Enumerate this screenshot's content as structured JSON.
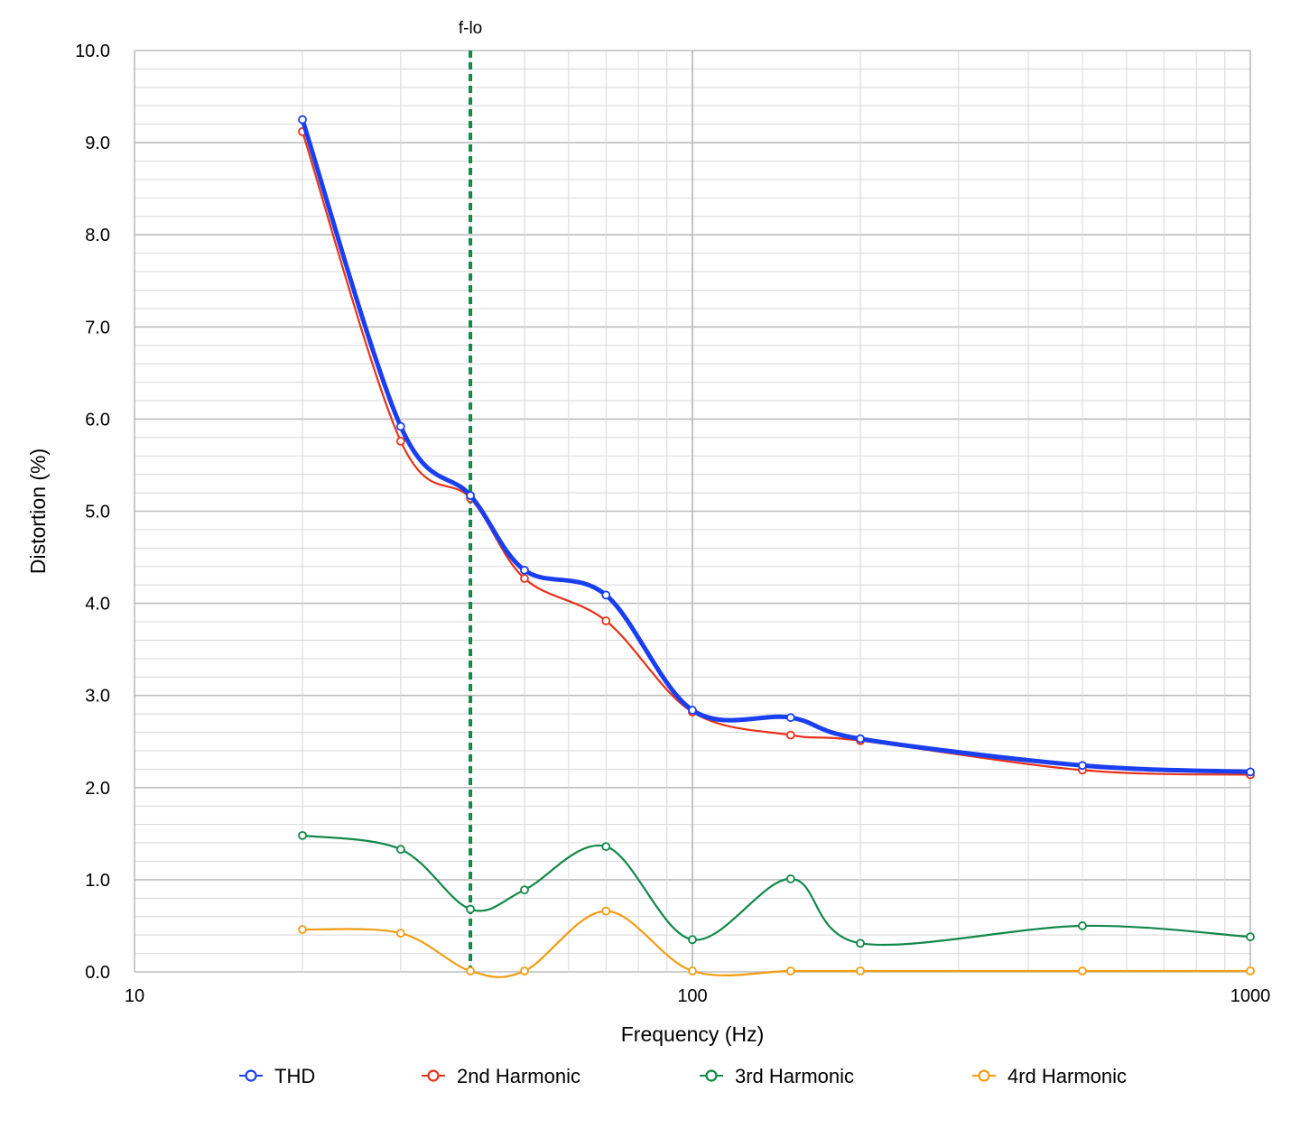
{
  "chart_data": {
    "type": "line",
    "xlabel": "Frequency (Hz)",
    "ylabel": "Distortion (%)",
    "xscale": "log",
    "xlim": [
      10,
      1000
    ],
    "ylim": [
      0,
      10
    ],
    "x_tick_labels": [
      "10",
      "100",
      "1000"
    ],
    "y_tick_labels": [
      "0.0",
      "1.0",
      "2.0",
      "3.0",
      "4.0",
      "5.0",
      "6.0",
      "7.0",
      "8.0",
      "9.0",
      "10.0"
    ],
    "grid": true,
    "legend_position": "bottom",
    "x": [
      20,
      30,
      40,
      50,
      70,
      100,
      150,
      200,
      500,
      1000
    ],
    "series": [
      {
        "name": "THD",
        "color": "#1a3ff0",
        "values": [
          9.25,
          5.92,
          5.17,
          4.36,
          4.09,
          2.84,
          2.76,
          2.53,
          2.24,
          2.17
        ]
      },
      {
        "name": "2nd Harmonic",
        "color": "#e8321a",
        "values": [
          9.12,
          5.76,
          5.14,
          4.27,
          3.81,
          2.82,
          2.57,
          2.51,
          2.19,
          2.14
        ]
      },
      {
        "name": "3rd Harmonic",
        "color": "#12884a",
        "values": [
          1.48,
          1.33,
          0.68,
          0.89,
          1.36,
          0.35,
          1.01,
          0.31,
          0.5,
          0.38
        ]
      },
      {
        "name": "4rd Harmonic",
        "color": "#f39c12",
        "values": [
          0.46,
          0.42,
          0.01,
          0.01,
          0.66,
          0.01,
          0.01,
          0.01,
          0.01,
          0.01
        ]
      }
    ],
    "annotations": [
      {
        "label": "f-lo",
        "x": 40,
        "style": "dashed vertical line",
        "color": "#12884a"
      }
    ]
  }
}
